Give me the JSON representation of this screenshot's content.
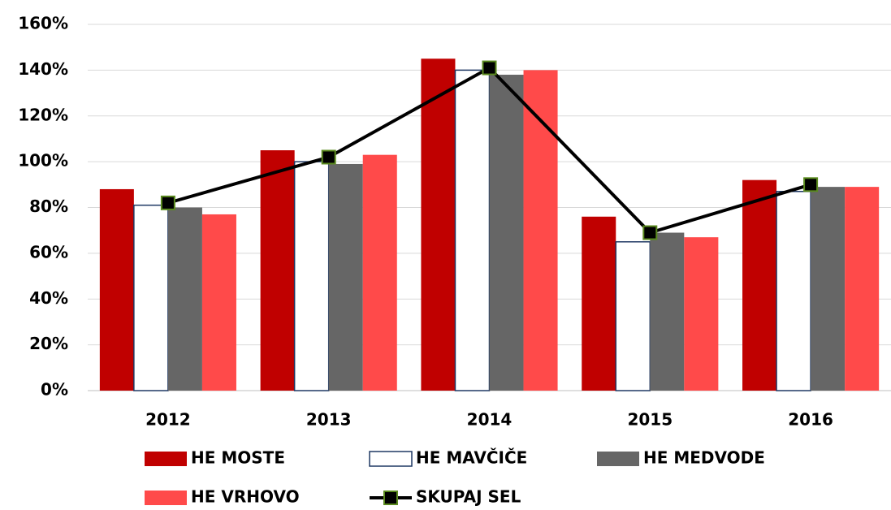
{
  "chart_data": {
    "type": "bar",
    "categories": [
      "2012",
      "2013",
      "2014",
      "2015",
      "2016"
    ],
    "series": [
      {
        "name": "HE MOSTE",
        "color": "#c00000",
        "values": [
          88,
          105,
          145,
          76,
          92
        ]
      },
      {
        "name": "HE MAVČIČE",
        "color": "#ffffff",
        "edge_color": "#1f3864",
        "values": [
          81,
          100,
          140,
          65,
          87
        ]
      },
      {
        "name": "HE MEDVODE",
        "color": "#666666",
        "values": [
          80,
          99,
          138,
          69,
          89
        ]
      },
      {
        "name": "HE VRHOVO",
        "color": "#ff4a4a",
        "values": [
          77,
          103,
          140,
          67,
          89
        ]
      },
      {
        "name": "SKUPAJ SEL",
        "type": "line",
        "color": "#000000",
        "marker_edge": "#5a8a1e",
        "values": [
          82,
          102,
          141,
          69,
          90
        ]
      }
    ],
    "ylim": [
      0,
      160
    ],
    "yticks": [
      {
        "value": 0,
        "label": "0%"
      },
      {
        "value": 20,
        "label": "20%"
      },
      {
        "value": 40,
        "label": "40%"
      },
      {
        "value": 60,
        "label": "60%"
      },
      {
        "value": 80,
        "label": "80%"
      },
      {
        "value": 100,
        "label": "100%"
      },
      {
        "value": 120,
        "label": "120%"
      },
      {
        "value": 140,
        "label": "140%"
      },
      {
        "value": 160,
        "label": "160%"
      }
    ],
    "grid": true
  }
}
